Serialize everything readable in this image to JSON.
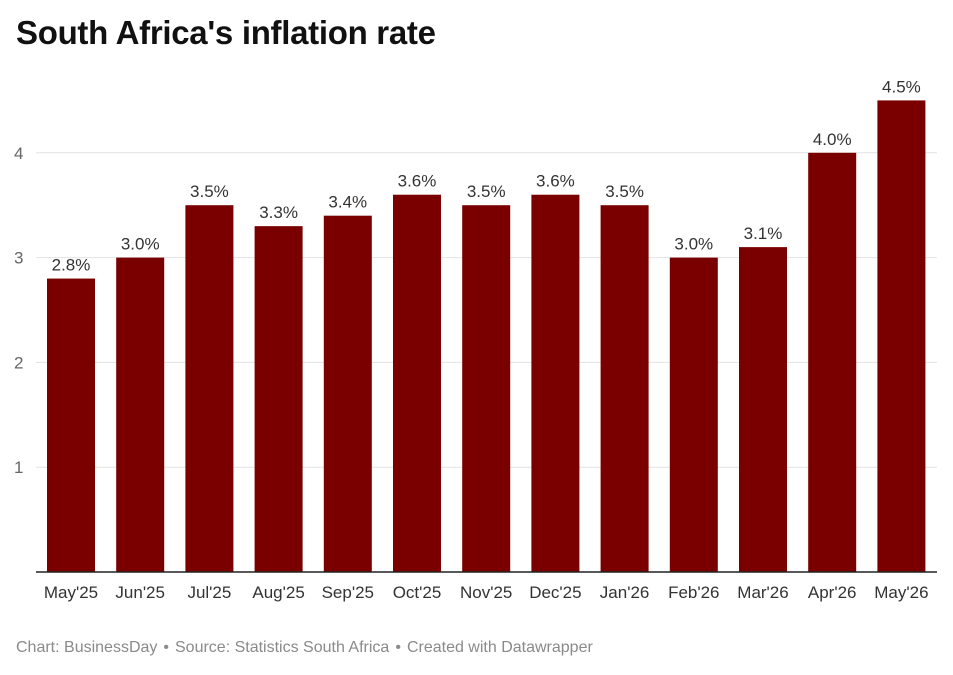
{
  "title": "South Africa's inflation rate",
  "footer": {
    "chart_credit": "Chart: BusinessDay",
    "separator": "•",
    "source": "Source: Statistics South Africa",
    "tool": "Created with Datawrapper"
  },
  "colors": {
    "bar": "#7a0000",
    "grid": "#e2e2e2",
    "axis": "#222222"
  },
  "chart_data": {
    "type": "bar",
    "categories": [
      "May'25",
      "Jun'25",
      "Jul'25",
      "Aug'25",
      "Sep'25",
      "Oct'25",
      "Nov'25",
      "Dec'25",
      "Jan'26",
      "Feb'26",
      "Mar'26",
      "Apr'26",
      "May'26"
    ],
    "values": [
      2.8,
      3.0,
      3.5,
      3.3,
      3.4,
      3.6,
      3.5,
      3.6,
      3.5,
      3.0,
      3.1,
      4.0,
      4.5
    ],
    "value_labels": [
      "2.8%",
      "3.0%",
      "3.5%",
      "3.3%",
      "3.4%",
      "3.6%",
      "3.5%",
      "3.6%",
      "3.5%",
      "3.0%",
      "3.1%",
      "4.0%",
      "4.5%"
    ],
    "yticks": [
      1,
      2,
      3,
      4
    ],
    "ylim": [
      0,
      4.5
    ],
    "grid": true,
    "legend": "none"
  }
}
